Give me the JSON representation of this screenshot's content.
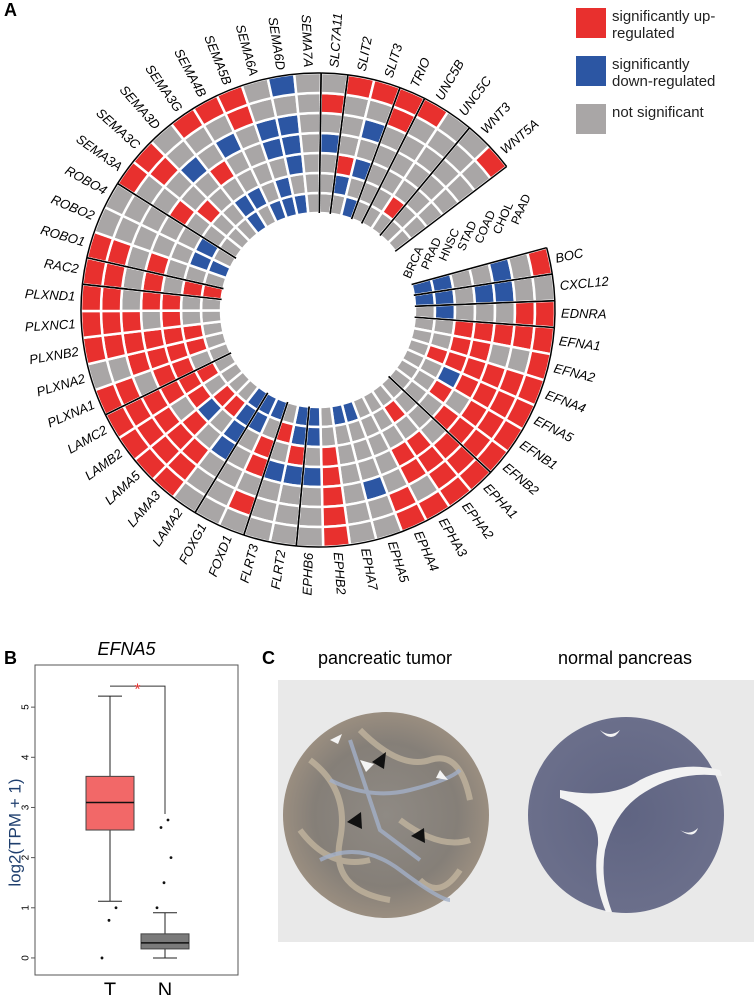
{
  "panel_labels": [
    "A",
    "B",
    "C"
  ],
  "chart_data": [
    {
      "type": "circular-heatmap",
      "categories": [
        "BOC",
        "CXCL12",
        "EDNRA",
        "EFNA1",
        "EFNA2",
        "EFNA4",
        "EFNA5",
        "EFNB1",
        "EFNB2",
        "EPHA1",
        "EPHA2",
        "EPHA3",
        "EPHA4",
        "EPHA5",
        "EPHA7",
        "EPHB2",
        "EPHB6",
        "FLRT2",
        "FLRT3",
        "FOXD1",
        "FOXG1",
        "LAMA2",
        "LAMA3",
        "LAMA5",
        "LAMB2",
        "LAMC2",
        "PLXNA1",
        "PLXNA2",
        "PLXNB2",
        "PLXNC1",
        "PLXND1",
        "RAC2",
        "ROBO1",
        "ROBO2",
        "ROBO4",
        "SEMA3A",
        "SEMA3C",
        "SEMA3D",
        "SEMA3G",
        "SEMA4B",
        "SEMA5B",
        "SEMA6A",
        "SEMA6D",
        "SEMA7A",
        "SLC7A11",
        "SLIT2",
        "SLIT3",
        "TRIO",
        "UNC5B",
        "UNC5C",
        "WNT3",
        "WNT5A"
      ],
      "rings": [
        "BRCA",
        "PRAD",
        "HNSC",
        "STAD",
        "COAD",
        "CHOL",
        "PAAD"
      ],
      "values": [
        [
          -1,
          -1,
          0,
          0,
          -1,
          0,
          1
        ],
        [
          -1,
          -1,
          0,
          -1,
          -1,
          0,
          0
        ],
        [
          0,
          -1,
          0,
          0,
          0,
          1,
          1
        ],
        [
          0,
          0,
          1,
          1,
          1,
          1,
          1
        ],
        [
          0,
          0,
          1,
          1,
          0,
          0,
          1
        ],
        [
          0,
          1,
          1,
          1,
          1,
          1,
          1
        ],
        [
          0,
          0,
          -1,
          1,
          1,
          1,
          1
        ],
        [
          0,
          0,
          1,
          0,
          1,
          1,
          1
        ],
        [
          0,
          0,
          0,
          1,
          1,
          1,
          1
        ],
        [
          0,
          0,
          0,
          0,
          1,
          1,
          1
        ],
        [
          0,
          1,
          0,
          1,
          1,
          1,
          1
        ],
        [
          0,
          0,
          0,
          1,
          1,
          0,
          1
        ],
        [
          0,
          0,
          0,
          0,
          0,
          1,
          1
        ],
        [
          -1,
          0,
          0,
          0,
          -1,
          0,
          0
        ],
        [
          -1,
          0,
          0,
          0,
          0,
          0,
          0
        ],
        [
          0,
          0,
          1,
          1,
          1,
          1,
          1
        ],
        [
          -1,
          -1,
          0,
          -1,
          0,
          0,
          0
        ],
        [
          -1,
          -1,
          1,
          -1,
          0,
          0,
          0
        ],
        [
          0,
          1,
          0,
          -1,
          0,
          0,
          0
        ],
        [
          -1,
          0,
          1,
          1,
          0,
          1,
          0
        ],
        [
          -1,
          -1,
          0,
          0,
          0,
          0,
          0
        ],
        [
          -1,
          -1,
          -1,
          -1,
          0,
          0,
          0
        ],
        [
          0,
          1,
          0,
          0,
          1,
          1,
          1
        ],
        [
          0,
          1,
          -1,
          1,
          1,
          1,
          1
        ],
        [
          0,
          0,
          1,
          0,
          1,
          1,
          1
        ],
        [
          0,
          1,
          1,
          1,
          1,
          1,
          1
        ],
        [
          0,
          0,
          1,
          1,
          0,
          1,
          1
        ],
        [
          0,
          1,
          1,
          1,
          1,
          0,
          0
        ],
        [
          0,
          1,
          1,
          1,
          1,
          1,
          1
        ],
        [
          0,
          0,
          1,
          0,
          1,
          1,
          1
        ],
        [
          0,
          0,
          1,
          1,
          0,
          1,
          1
        ],
        [
          1,
          1,
          0,
          1,
          0,
          1,
          1
        ],
        [
          0,
          0,
          0,
          1,
          0,
          1,
          1
        ],
        [
          -1,
          -1,
          0,
          0,
          0,
          0,
          0
        ],
        [
          0,
          -1,
          0,
          0,
          0,
          0,
          0
        ],
        [
          0,
          0,
          0,
          1,
          0,
          0,
          1
        ],
        [
          0,
          0,
          1,
          0,
          0,
          1,
          1
        ],
        [
          0,
          0,
          0,
          0,
          -1,
          0,
          0
        ],
        [
          -1,
          -1,
          0,
          1,
          0,
          0,
          1
        ],
        [
          0,
          -1,
          0,
          0,
          -1,
          0,
          1
        ],
        [
          -1,
          0,
          0,
          0,
          0,
          1,
          1
        ],
        [
          -1,
          -1,
          0,
          -1,
          -1,
          0,
          0
        ],
        [
          -1,
          0,
          -1,
          -1,
          -1,
          0,
          -1
        ],
        [
          0,
          0,
          0,
          0,
          0,
          0,
          0
        ],
        [
          0,
          0,
          0,
          -1,
          0,
          1,
          0
        ],
        [
          0,
          -1,
          1,
          0,
          0,
          0,
          1
        ],
        [
          -1,
          0,
          -1,
          0,
          -1,
          0,
          1
        ],
        [
          0,
          0,
          0,
          0,
          0,
          1,
          1
        ],
        [
          0,
          0,
          0,
          0,
          0,
          0,
          1
        ],
        [
          0,
          1,
          0,
          0,
          0,
          0,
          0
        ],
        [
          0,
          0,
          0,
          0,
          0,
          0,
          0
        ],
        [
          0,
          0,
          0,
          0,
          0,
          0,
          1
        ]
      ],
      "legend": [
        {
          "label": "significantly up-regulated",
          "color": "#e8302e",
          "value": 1
        },
        {
          "label": "significantly down-regulated",
          "color": "#2c56a3",
          "value": -1
        },
        {
          "label": "not significant",
          "color": "#a9a6a6",
          "value": 0
        }
      ]
    },
    {
      "type": "box",
      "title": "EFNA5",
      "y_label": "log2(TPM + 1)",
      "categories": [
        "T",
        "N"
      ],
      "boxes": [
        {
          "color": "#f26868",
          "whislo": 1.13,
          "q1": 2.55,
          "med": 3.1,
          "q3": 3.62,
          "whishi": 5.22,
          "outliers": [
            0,
            0.75,
            1.0
          ]
        },
        {
          "color": "#7a7a7a",
          "whislo": 0,
          "q1": 0.18,
          "med": 0.3,
          "q3": 0.48,
          "whishi": 0.9,
          "outliers": [
            1.0,
            1.5,
            2.0,
            2.6,
            2.75
          ]
        }
      ],
      "annotation": "*",
      "ylim": [
        -0.34,
        5.84
      ],
      "yticks": [
        0,
        1,
        2,
        3,
        4,
        5
      ]
    }
  ],
  "panel_c": {
    "labels": [
      "pancreatic tumor",
      "normal pancreas"
    ]
  }
}
